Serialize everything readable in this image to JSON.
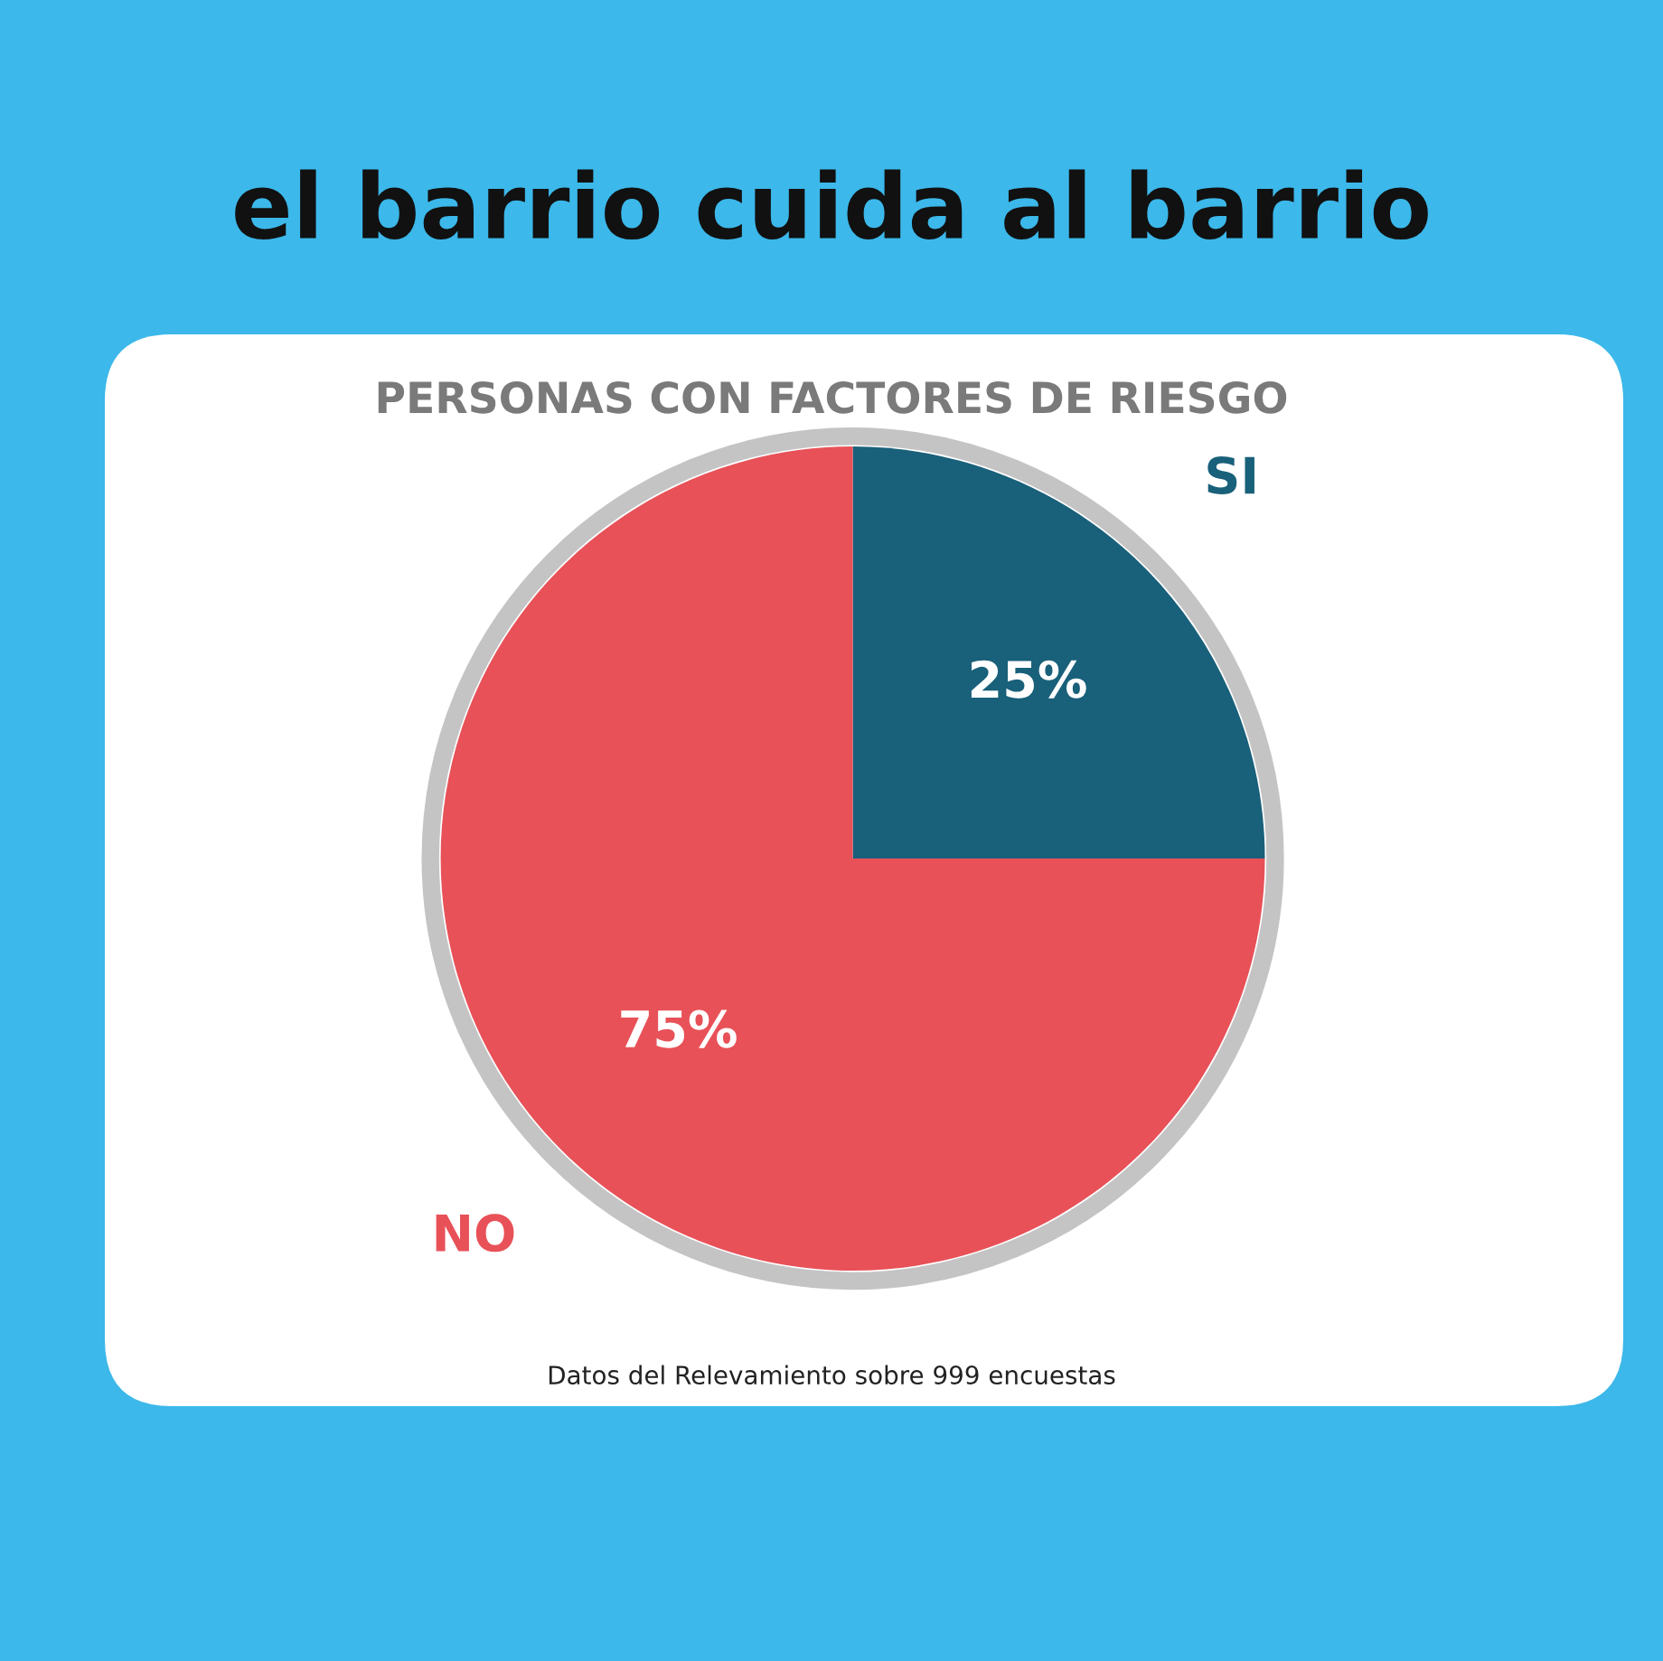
{
  "chart_data": {
    "type": "pie",
    "title": "el barrio cuida al barrio",
    "subtitle": "PERSONAS CON FACTORES DE RIESGO",
    "categories": [
      "SI",
      "NO"
    ],
    "values": [
      25,
      75
    ],
    "colors": [
      "#19607a",
      "#e85158"
    ],
    "value_labels": [
      "25%",
      "75%"
    ],
    "legend": false,
    "annotations": [
      "Datos del Relevamiento sobre 999 encuestas"
    ]
  }
}
